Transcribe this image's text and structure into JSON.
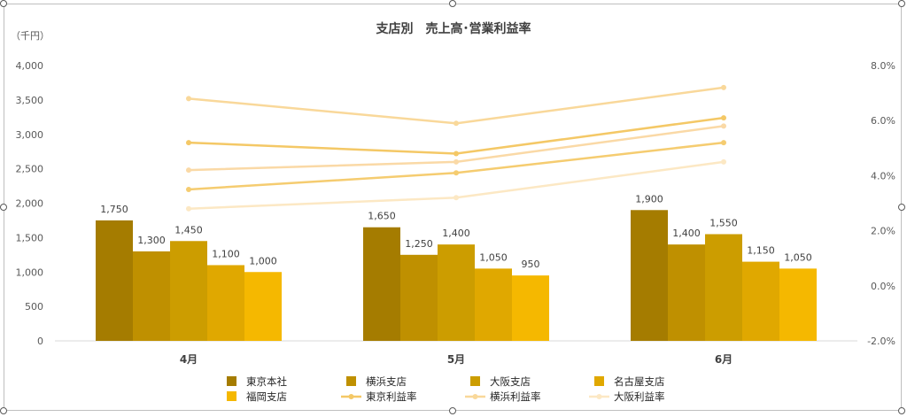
{
  "chart_data": {
    "type": "bar",
    "title": "支店別　売上高･営業利益率",
    "ylabel": "（千円）",
    "y2label": "",
    "categories": [
      "4月",
      "5月",
      "6月"
    ],
    "ylim": [
      0,
      4000
    ],
    "y_ticks": [
      "0",
      "500",
      "1,000",
      "1,500",
      "2,000",
      "2,500",
      "3,000",
      "3,500",
      "4,000"
    ],
    "y2lim": [
      -2.0,
      8.0
    ],
    "y2_ticks": [
      "-2.0%",
      "0.0%",
      "2.0%",
      "4.0%",
      "6.0%",
      "8.0%"
    ],
    "bar_series": [
      {
        "name": "東京本社",
        "values": [
          1750,
          1650,
          1900
        ],
        "labels": [
          "1,750",
          "1,650",
          "1,900"
        ],
        "color": "#A57C00"
      },
      {
        "name": "横浜支店",
        "values": [
          1300,
          1250,
          1400
        ],
        "labels": [
          "1,300",
          "1,250",
          "1,400"
        ],
        "color": "#BF9000"
      },
      {
        "name": "大阪支店",
        "values": [
          1450,
          1400,
          1550
        ],
        "labels": [
          "1,450",
          "1,400",
          "1,550"
        ],
        "color": "#CC9D00"
      },
      {
        "name": "名古屋支店",
        "values": [
          1100,
          1050,
          1150
        ],
        "labels": [
          "1,100",
          "1,050",
          "1,150"
        ],
        "color": "#E0A800"
      },
      {
        "name": "福岡支店",
        "values": [
          1000,
          950,
          1050
        ],
        "labels": [
          "1,000",
          "950",
          "1,050"
        ],
        "color": "#F5B800"
      }
    ],
    "line_series": [
      {
        "name": "東京利益率",
        "values": [
          5.2,
          4.8,
          6.1
        ],
        "color": "#F4C866"
      },
      {
        "name": "横浜利益率",
        "values": [
          6.8,
          5.9,
          7.2
        ],
        "color": "#F9D89A"
      },
      {
        "name": "大阪利益率",
        "values": [
          2.8,
          3.2,
          4.5
        ],
        "color": "#FCE8C4"
      },
      {
        "name": "",
        "values": [
          3.5,
          4.1,
          5.2
        ],
        "color": "#F5CC70"
      },
      {
        "name": "",
        "values": [
          4.2,
          4.5,
          5.8
        ],
        "color": "#FAD9A6"
      }
    ],
    "legend_position": "bottom",
    "grid": false
  }
}
